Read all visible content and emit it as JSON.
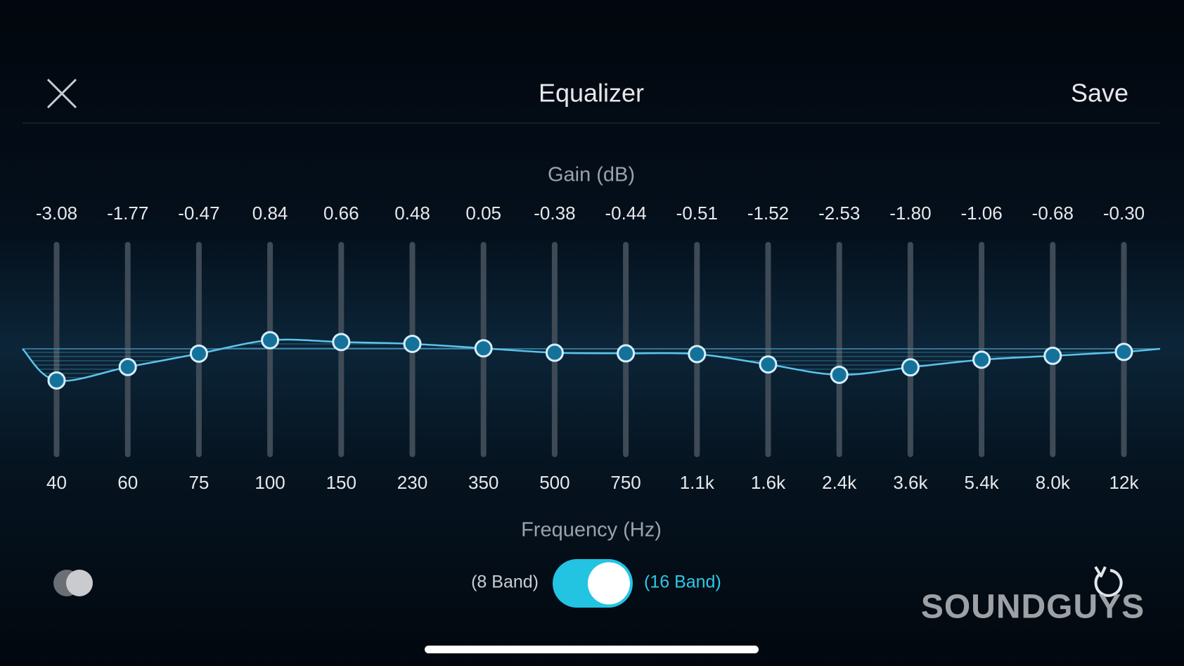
{
  "header": {
    "title": "Equalizer",
    "save": "Save"
  },
  "gain_axis_label": "Gain (dB)",
  "frequency_axis_label": "Frequency (Hz)",
  "bands": {
    "frequencies": [
      "40",
      "60",
      "75",
      "100",
      "150",
      "230",
      "350",
      "500",
      "750",
      "1.1k",
      "1.6k",
      "2.4k",
      "3.6k",
      "5.4k",
      "8.0k",
      "12k"
    ],
    "gains": [
      -3.08,
      -1.77,
      -0.47,
      0.84,
      0.66,
      0.48,
      0.05,
      -0.38,
      -0.44,
      -0.51,
      -1.52,
      -2.53,
      -1.8,
      -1.06,
      -0.68,
      -0.3
    ],
    "gain_labels": [
      "-3.08",
      "-1.77",
      "-0.47",
      "0.84",
      "0.66",
      "0.48",
      "0.05",
      "-0.38",
      "-0.44",
      "-0.51",
      "-1.52",
      "-2.53",
      "-1.80",
      "-1.06",
      "-0.68",
      "-0.30"
    ]
  },
  "band_toggle": {
    "left_label": "(8 Band)",
    "right_label": "(16 Band)"
  },
  "watermark": "SOUNDGUYS"
}
